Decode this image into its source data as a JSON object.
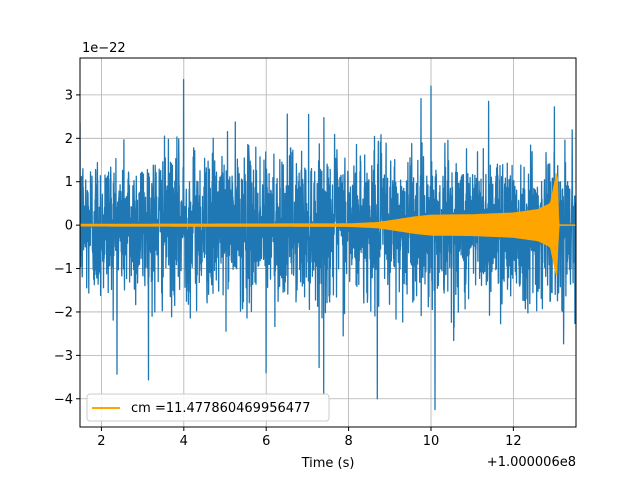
{
  "chart_data": {
    "type": "line",
    "xlabel": "Time (s)",
    "ylabel": "",
    "x_offset_label": "+1.000006e8",
    "y_scale_label": "1e−22",
    "xlim": [
      1.48,
      13.52
    ],
    "ylim": [
      -4.65,
      3.85
    ],
    "x_ticks": [
      2,
      4,
      6,
      8,
      10,
      12
    ],
    "x_tick_labels": [
      "2",
      "4",
      "6",
      "8",
      "10",
      "12"
    ],
    "y_ticks": [
      -4,
      -3,
      -2,
      -1,
      0,
      1,
      2,
      3
    ],
    "y_tick_labels": [
      "−4",
      "−3",
      "−2",
      "−1",
      "0",
      "1",
      "2",
      "3"
    ],
    "grid": true,
    "legend_position": "lower-left",
    "series": [
      {
        "name": "",
        "color": "#1f77b4",
        "kind": "strain noise",
        "peak_points": [
          {
            "x": 3.3,
            "y": -2.0
          },
          {
            "x": 4.0,
            "y": 3.35
          },
          {
            "x": 6.0,
            "y": -3.4
          },
          {
            "x": 7.4,
            "y": -3.9
          },
          {
            "x": 8.7,
            "y": -4.0
          },
          {
            "x": 10.1,
            "y": -4.25
          },
          {
            "x": 10.0,
            "y": 3.2
          },
          {
            "x": 11.4,
            "y": 2.85
          }
        ]
      },
      {
        "name": "cm =11.477860469956477",
        "color": "#ffa500",
        "kind": "chirp template",
        "envelope": [
          {
            "x": 1.48,
            "y": 0.02
          },
          {
            "x": 8.0,
            "y": 0.03
          },
          {
            "x": 8.7,
            "y": 0.06
          },
          {
            "x": 9.2,
            "y": 0.13
          },
          {
            "x": 9.6,
            "y": 0.19
          },
          {
            "x": 10.0,
            "y": 0.23
          },
          {
            "x": 11.0,
            "y": 0.24
          },
          {
            "x": 12.0,
            "y": 0.28
          },
          {
            "x": 12.6,
            "y": 0.36
          },
          {
            "x": 12.9,
            "y": 0.5
          },
          {
            "x": 13.05,
            "y": 1.2
          },
          {
            "x": 13.1,
            "y": 0.0
          }
        ],
        "peak_max": 1.2,
        "peak_min": -1.0,
        "peak_x": 13.05
      }
    ]
  }
}
